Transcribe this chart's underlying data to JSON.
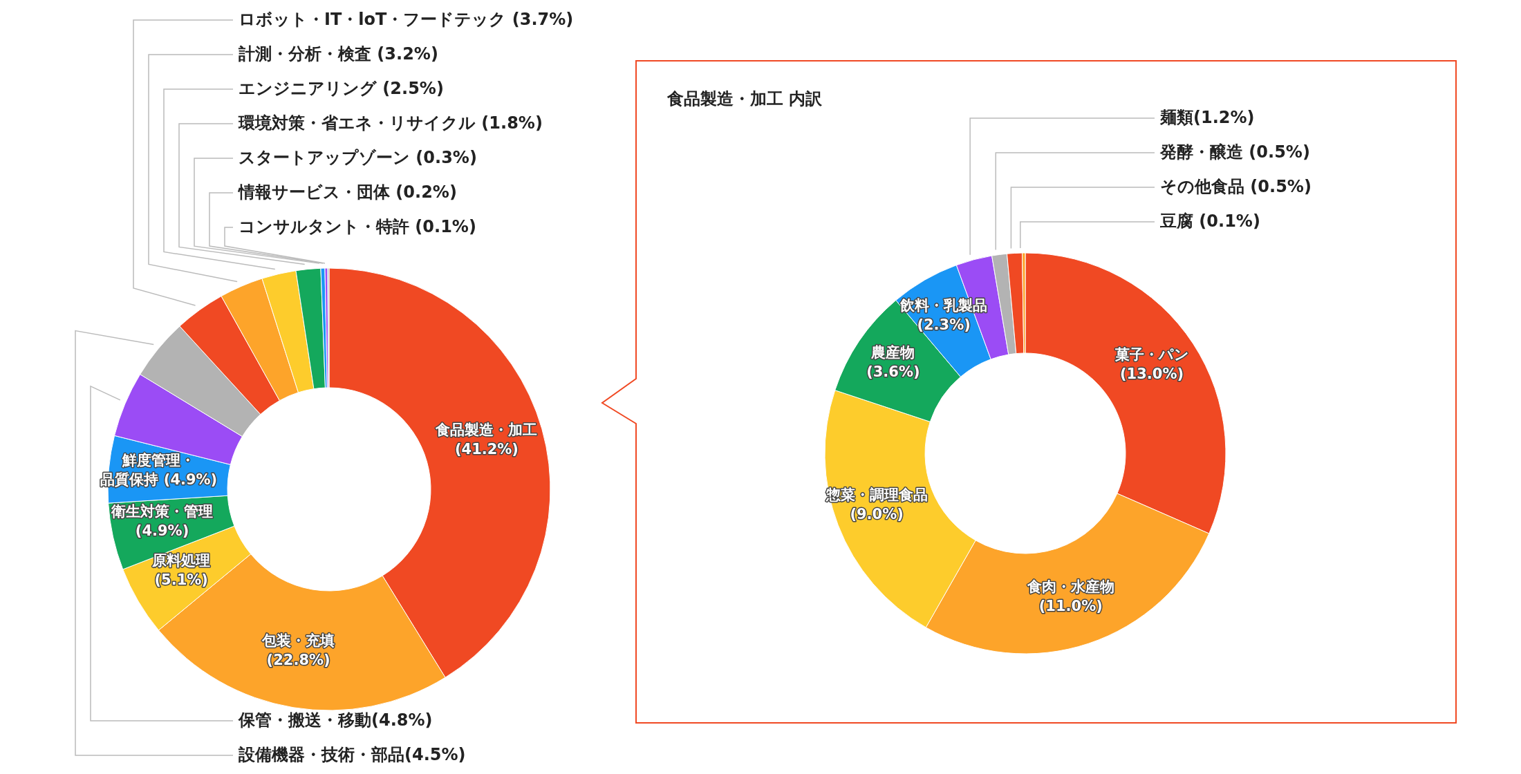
{
  "chart_data": [
    {
      "type": "donut",
      "categories": [
        "食品製造・加工",
        "包装・充填",
        "原料処理",
        "衛生対策・管理",
        "鮮度管理・品質保持",
        "保管・搬送・移動",
        "設備機器・技術・部品",
        "ロボット・IT・loT・フードテック",
        "計測・分析・検査",
        "エンジニアリング",
        "環境対策・省エネ・リサイクル",
        "スタートアップゾーン",
        "情報サービス・団体",
        "コンサルタント・特許"
      ],
      "values": [
        41.2,
        22.8,
        5.1,
        4.9,
        4.9,
        4.8,
        4.5,
        3.7,
        3.2,
        2.5,
        1.8,
        0.3,
        0.2,
        0.1
      ],
      "value_labels": [
        "(41.2%)",
        "(22.8%)",
        "(5.1%)",
        "(4.9%)",
        "(4.9%)",
        "(4.8%)",
        "(4.5%)",
        " (3.7%)",
        " (3.2%)",
        " (2.5%)",
        " (1.8%)",
        " (0.3%)",
        " (0.2%)",
        " (0.1%)"
      ],
      "colors": [
        "#f04923",
        "#fda42a",
        "#fdcc2c",
        "#14a85c",
        "#1a96f5",
        "#9b4cf5",
        "#b3b3b3",
        "#f04923",
        "#fda42a",
        "#fdcc2c",
        "#14a85c",
        "#1a96f5",
        "#9b4cf5",
        "#b3b3b3"
      ]
    },
    {
      "type": "donut",
      "title": "食品製造・加工 内訳",
      "categories": [
        "菓子・パン",
        "食肉・水産物",
        "惣菜・調理食品",
        "農産物",
        "飲料・乳製品",
        "麺類",
        "発酵・醸造",
        "その他食品",
        "豆腐"
      ],
      "values": [
        13.0,
        11.0,
        9.0,
        3.6,
        2.3,
        1.2,
        0.5,
        0.5,
        0.1
      ],
      "value_labels": [
        "(13.0%)",
        "(11.0%)",
        "(9.0%)",
        "(3.6%)",
        "(2.3%)",
        "(1.2%)",
        " (0.5%)",
        " (0.5%)",
        " (0.1%)"
      ],
      "colors": [
        "#f04923",
        "#fda42a",
        "#fdcc2c",
        "#14a85c",
        "#1a96f5",
        "#9b4cf5",
        "#b3b3b3",
        "#f04923",
        "#fda42a"
      ]
    }
  ]
}
